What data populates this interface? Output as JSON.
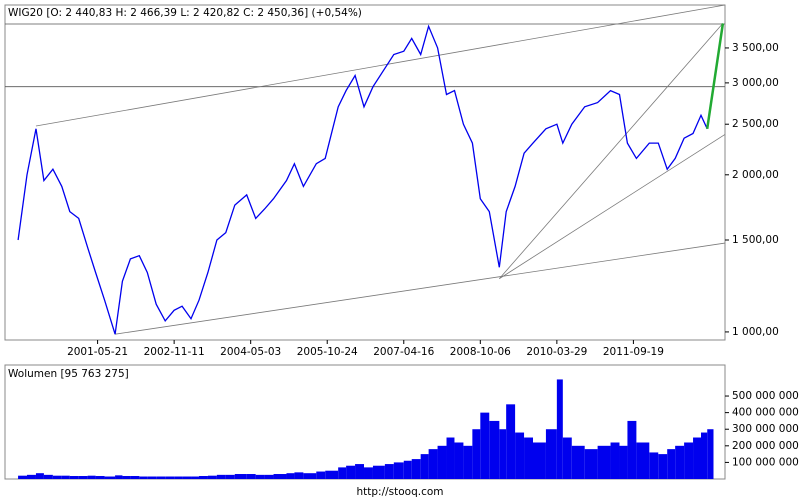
{
  "chart_data": [
    {
      "type": "line",
      "title": "WIG20 [O: 2 440,83  H: 2 466,39  L: 2 420,82  C: 2 450,36]  (+0,54%)",
      "log_scale": true,
      "xlim": [
        "1999-08-08",
        "2013-06-25"
      ],
      "xticks": [
        "2001-05-21",
        "2002-11-11",
        "2004-05-03",
        "2005-10-24",
        "2007-04-16",
        "2008-10-06",
        "2010-03-29",
        "2011-09-19"
      ],
      "ylim": [
        965,
        4230
      ],
      "yticks": [
        {
          "value": 1000,
          "label": "1 000,00"
        },
        {
          "value": 1500,
          "label": "1 500,00"
        },
        {
          "value": 2000,
          "label": "2 000,00"
        },
        {
          "value": 2500,
          "label": "2 500,00"
        },
        {
          "value": 3000,
          "label": "3 000,00"
        },
        {
          "value": 3500,
          "label": "3 500,00"
        }
      ],
      "hlines": [
        3890,
        2950
      ],
      "trendline_color": "#7a7a7a",
      "trendlines": [
        {
          "x": [
            "2000-03-13",
            "2013-06-25"
          ],
          "values": [
            2480,
            4230
          ]
        },
        {
          "x": [
            "2001-09-21",
            "2013-06-25"
          ],
          "values": [
            990,
            1480
          ]
        },
        {
          "x": [
            "2009-02-17",
            "2013-06-10"
          ],
          "values": [
            1265,
            3900
          ]
        },
        {
          "x": [
            "2009-02-17",
            "2013-06-25"
          ],
          "values": [
            1265,
            2390
          ]
        }
      ],
      "series": [
        {
          "color": "#0000ee",
          "x": [
            "1999-11-08",
            "2000-01-10",
            "2000-03-13",
            "2000-05-08",
            "2000-07-10",
            "2000-09-11",
            "2000-11-06",
            "2001-01-08",
            "2001-03-12",
            "2001-05-07",
            "2001-07-09",
            "2001-09-21",
            "2001-11-12",
            "2002-01-07",
            "2002-03-11",
            "2002-05-06",
            "2002-07-08",
            "2002-09-09",
            "2002-11-11",
            "2003-01-06",
            "2003-03-10",
            "2003-05-05",
            "2003-07-07",
            "2003-09-08",
            "2003-11-10",
            "2004-01-12",
            "2004-04-05",
            "2004-06-07",
            "2004-08-09",
            "2004-10-11",
            "2005-01-10",
            "2005-03-07",
            "2005-05-09",
            "2005-08-08",
            "2005-10-10",
            "2006-01-09",
            "2006-03-06",
            "2006-05-08",
            "2006-07-10",
            "2006-09-11",
            "2006-12-04",
            "2007-02-05",
            "2007-04-16",
            "2007-06-11",
            "2007-08-13",
            "2007-10-08",
            "2007-12-10",
            "2008-02-11",
            "2008-04-07",
            "2008-06-09",
            "2008-08-11",
            "2008-10-06",
            "2008-12-08",
            "2009-02-17",
            "2009-04-06",
            "2009-06-08",
            "2009-08-10",
            "2009-10-12",
            "2010-01-11",
            "2010-03-29",
            "2010-05-10",
            "2010-07-12",
            "2010-10-11",
            "2011-01-10",
            "2011-04-11",
            "2011-06-13",
            "2011-08-08",
            "2011-10-10",
            "2012-01-09",
            "2012-03-12",
            "2012-05-14",
            "2012-07-09",
            "2012-09-10",
            "2012-11-12",
            "2013-01-07",
            "2013-02-20"
          ],
          "values": [
            1500,
            2000,
            2450,
            1950,
            2050,
            1900,
            1700,
            1650,
            1450,
            1300,
            1150,
            990,
            1250,
            1380,
            1400,
            1300,
            1130,
            1050,
            1100,
            1120,
            1060,
            1150,
            1300,
            1500,
            1550,
            1750,
            1830,
            1650,
            1720,
            1800,
            1950,
            2100,
            1900,
            2100,
            2150,
            2700,
            2900,
            3100,
            2700,
            2950,
            3200,
            3400,
            3450,
            3650,
            3400,
            3850,
            3500,
            2850,
            2900,
            2500,
            2300,
            1800,
            1700,
            1330,
            1700,
            1900,
            2200,
            2300,
            2450,
            2500,
            2300,
            2500,
            2700,
            2750,
            2900,
            2850,
            2300,
            2150,
            2300,
            2300,
            2050,
            2150,
            2350,
            2400,
            2600,
            2450
          ]
        },
        {
          "color": "#22aa33",
          "x": [
            "2013-02-20",
            "2013-06-10"
          ],
          "values": [
            2450,
            3900
          ]
        }
      ]
    },
    {
      "type": "bar",
      "title": "Wolumen [95 763 275]",
      "color": "#0000ee",
      "xlim": [
        "1999-08-08",
        "2013-06-25"
      ],
      "ylim": [
        0,
        687000000
      ],
      "yticks": [
        {
          "value": 100000000,
          "label": "100 000 000"
        },
        {
          "value": 200000000,
          "label": "200 000 000"
        },
        {
          "value": 300000000,
          "label": "300 000 000"
        },
        {
          "value": 400000000,
          "label": "400 000 000"
        },
        {
          "value": 500000000,
          "label": "500 000 000"
        }
      ],
      "x": [
        "1999-11-08",
        "2000-01-10",
        "2000-03-13",
        "2000-05-08",
        "2000-07-10",
        "2000-09-11",
        "2000-11-06",
        "2001-01-08",
        "2001-03-12",
        "2001-05-07",
        "2001-07-09",
        "2001-09-21",
        "2001-11-12",
        "2002-01-07",
        "2002-03-11",
        "2002-05-06",
        "2002-07-08",
        "2002-09-09",
        "2002-11-11",
        "2003-01-06",
        "2003-03-10",
        "2003-05-05",
        "2003-07-07",
        "2003-09-08",
        "2003-11-10",
        "2004-01-12",
        "2004-04-05",
        "2004-06-07",
        "2004-08-09",
        "2004-10-11",
        "2005-01-10",
        "2005-03-07",
        "2005-05-09",
        "2005-08-08",
        "2005-10-10",
        "2006-01-09",
        "2006-03-06",
        "2006-05-08",
        "2006-07-10",
        "2006-09-11",
        "2006-12-04",
        "2007-02-05",
        "2007-04-16",
        "2007-06-11",
        "2007-08-13",
        "2007-10-08",
        "2007-12-10",
        "2008-02-11",
        "2008-04-07",
        "2008-06-09",
        "2008-08-11",
        "2008-10-06",
        "2008-12-08",
        "2009-02-17",
        "2009-04-06",
        "2009-06-08",
        "2009-08-10",
        "2009-10-12",
        "2010-01-11",
        "2010-03-29",
        "2010-05-10",
        "2010-07-12",
        "2010-10-11",
        "2011-01-10",
        "2011-04-11",
        "2011-06-13",
        "2011-08-08",
        "2011-10-10",
        "2012-01-09",
        "2012-03-12",
        "2012-05-14",
        "2012-07-09",
        "2012-09-10",
        "2012-11-12",
        "2013-01-07",
        "2013-02-20"
      ],
      "values": [
        20000000,
        25000000,
        35000000,
        25000000,
        20000000,
        20000000,
        18000000,
        18000000,
        20000000,
        18000000,
        15000000,
        22000000,
        18000000,
        18000000,
        15000000,
        15000000,
        15000000,
        15000000,
        15000000,
        15000000,
        15000000,
        18000000,
        20000000,
        25000000,
        25000000,
        30000000,
        30000000,
        25000000,
        25000000,
        30000000,
        35000000,
        40000000,
        35000000,
        45000000,
        50000000,
        70000000,
        80000000,
        90000000,
        70000000,
        80000000,
        90000000,
        100000000,
        110000000,
        120000000,
        150000000,
        180000000,
        200000000,
        250000000,
        220000000,
        200000000,
        300000000,
        400000000,
        350000000,
        300000000,
        450000000,
        280000000,
        250000000,
        220000000,
        300000000,
        600000000,
        250000000,
        200000000,
        180000000,
        200000000,
        220000000,
        200000000,
        350000000,
        220000000,
        160000000,
        150000000,
        180000000,
        200000000,
        220000000,
        250000000,
        280000000,
        300000000
      ]
    }
  ],
  "footer": "http://stooq.com"
}
